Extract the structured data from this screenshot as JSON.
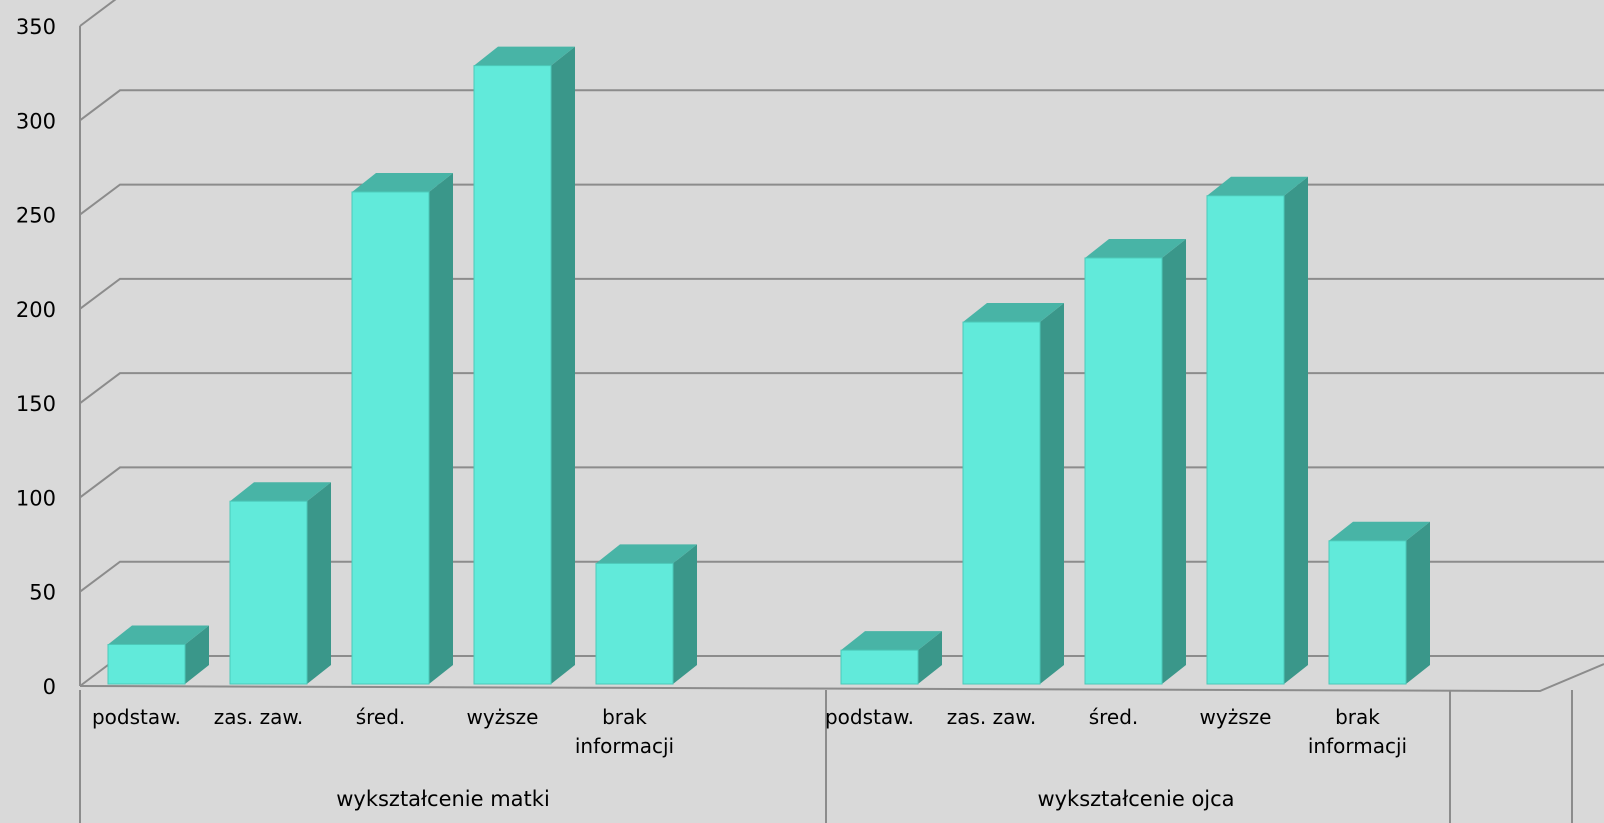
{
  "chart_data": {
    "type": "bar",
    "style": "3d-column",
    "title": "",
    "xlabel": "",
    "ylabel": "",
    "ylim": [
      0,
      350
    ],
    "y_ticks": [
      0,
      50,
      100,
      150,
      200,
      250,
      300,
      350
    ],
    "grid": true,
    "legend": "none",
    "groups": [
      {
        "label": "wykształcenie matki",
        "categories": [
          "podstaw.",
          "zas. zaw.",
          "śred.",
          "wyższe",
          "brak informacji"
        ],
        "values": [
          22,
          98,
          262,
          329,
          65
        ]
      },
      {
        "label": "wykształcenie ojca",
        "categories": [
          "podstaw.",
          "zas. zaw.",
          "śred.",
          "wyższe",
          "brak informacji"
        ],
        "values": [
          19,
          193,
          227,
          260,
          77
        ]
      }
    ],
    "colors": {
      "bar_front": "#61eada",
      "bar_side": "#3a978a",
      "bar_top": "#48b4a6",
      "background": "#d9d9d9",
      "grid": "#8c8c8c"
    }
  }
}
